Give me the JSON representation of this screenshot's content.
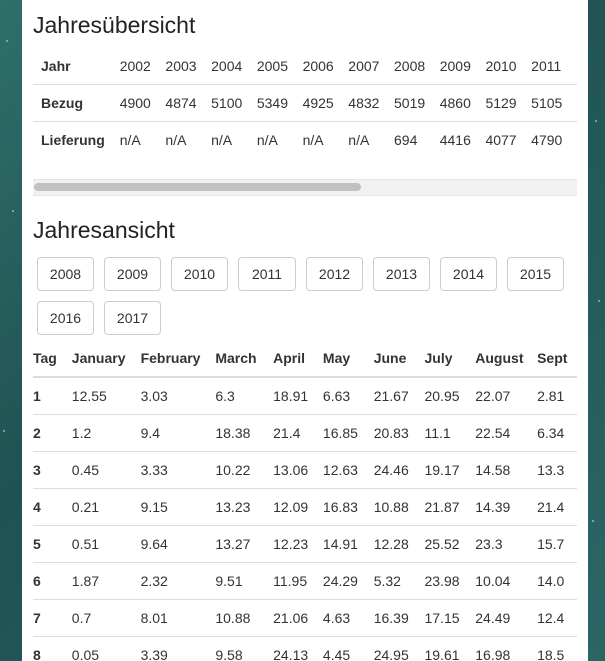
{
  "overview": {
    "title": "Jahresübersicht",
    "row_labels": [
      "Jahr",
      "Bezug",
      "Lieferung"
    ],
    "years": [
      "2002",
      "2003",
      "2004",
      "2005",
      "2006",
      "2007",
      "2008",
      "2009",
      "2010",
      "2011"
    ],
    "bezug": [
      "4900",
      "4874",
      "5100",
      "5349",
      "4925",
      "4832",
      "5019",
      "4860",
      "5129",
      "5105"
    ],
    "lieferung": [
      "n/A",
      "n/A",
      "n/A",
      "n/A",
      "n/A",
      "n/A",
      "694",
      "4416",
      "4077",
      "4790"
    ]
  },
  "yearview": {
    "title": "Jahresansicht",
    "year_buttons": [
      "2008",
      "2009",
      "2010",
      "2011",
      "2012",
      "2013",
      "2014",
      "2015",
      "2016",
      "2017"
    ],
    "columns": [
      "Tag",
      "January",
      "February",
      "March",
      "April",
      "May",
      "June",
      "July",
      "August",
      "Sept"
    ],
    "rows": [
      [
        "1",
        "12.55",
        "3.03",
        "6.3",
        "18.91",
        "6.63",
        "21.67",
        "20.95",
        "22.07",
        "2.81"
      ],
      [
        "2",
        "1.2",
        "9.4",
        "18.38",
        "21.4",
        "16.85",
        "20.83",
        "11.1",
        "22.54",
        "6.34"
      ],
      [
        "3",
        "0.45",
        "3.33",
        "10.22",
        "13.06",
        "12.63",
        "24.46",
        "19.17",
        "14.58",
        "13.3"
      ],
      [
        "4",
        "0.21",
        "9.15",
        "13.23",
        "12.09",
        "16.83",
        "10.88",
        "21.87",
        "14.39",
        "21.4"
      ],
      [
        "5",
        "0.51",
        "9.64",
        "13.27",
        "12.23",
        "14.91",
        "12.28",
        "25.52",
        "23.3",
        "15.7"
      ],
      [
        "6",
        "1.87",
        "2.32",
        "9.51",
        "11.95",
        "24.29",
        "5.32",
        "23.98",
        "10.04",
        "14.0"
      ],
      [
        "7",
        "0.7",
        "8.01",
        "10.88",
        "21.06",
        "4.63",
        "16.39",
        "17.15",
        "24.49",
        "12.4"
      ],
      [
        "8",
        "0.05",
        "3.39",
        "9.58",
        "24.13",
        "4.45",
        "24.95",
        "19.61",
        "16.98",
        "18.5"
      ]
    ]
  }
}
